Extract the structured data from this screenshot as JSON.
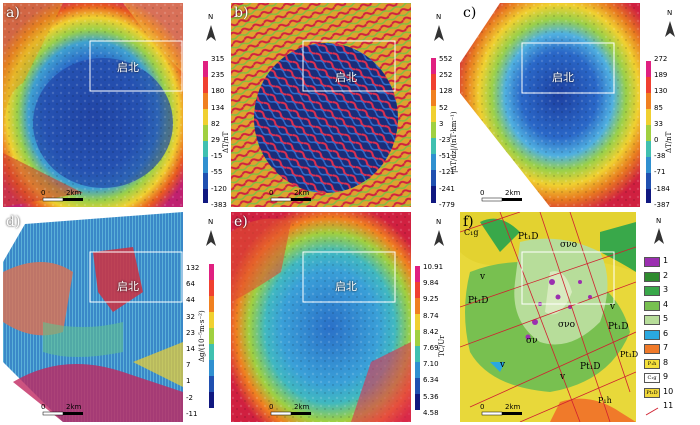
{
  "panels": [
    {
      "id": "a",
      "label": "a)",
      "place": "启北",
      "colorbar": [
        "315",
        "235",
        "180",
        "134",
        "82",
        "29",
        "-15",
        "-55",
        "-120",
        "-383"
      ],
      "unit": "ΔT/nT",
      "scale": {
        "zero": "0",
        "dist": "2km"
      },
      "north": "N"
    },
    {
      "id": "b",
      "label": "b)",
      "place": "启北",
      "colorbar": [
        "552",
        "252",
        "128",
        "52",
        "3",
        "-23",
        "-51",
        "-121",
        "-241",
        "-779"
      ],
      "unit": "|ΔT/dz|/(nT·km⁻¹)",
      "scale": {
        "zero": "0",
        "dist": "2km"
      },
      "north": "N"
    },
    {
      "id": "c",
      "label": "c)",
      "place": "启北",
      "colorbar": [
        "272",
        "189",
        "130",
        "85",
        "33",
        "0",
        "-38",
        "-71",
        "-184",
        "-387"
      ],
      "unit": "ΔT/nT",
      "scale": {
        "zero": "0",
        "dist": "2km"
      },
      "north": "N"
    },
    {
      "id": "d",
      "label": "d)",
      "place": "启北",
      "colorbar": [
        "132",
        "64",
        "44",
        "32",
        "23",
        "14",
        "7",
        "1",
        "-2",
        "-11"
      ],
      "unit": "Δg/(10⁻⁵m·s⁻²)",
      "scale": {
        "zero": "0",
        "dist": "2km"
      },
      "north": "N"
    },
    {
      "id": "e",
      "label": "e)",
      "place": "启北",
      "colorbar": [
        "10.91",
        "9.84",
        "9.25",
        "8.74",
        "8.42",
        "7.69",
        "7.10",
        "6.34",
        "5.36",
        "4.58"
      ],
      "unit": "TC/Ur",
      "scale": {
        "zero": "0",
        "dist": "2km"
      },
      "north": "N"
    },
    {
      "id": "f",
      "label": "f)",
      "scale": {
        "zero": "0",
        "dist": "2km"
      },
      "north": "N",
      "geo_labels": [
        "Pt₁D",
        "σνο",
        "Pt₁D",
        "σνο",
        "σν",
        "Pt₁D",
        "Pt₁D",
        "v",
        "v",
        "v",
        "v",
        "C₁g",
        "P₁h",
        "Pt₁D"
      ],
      "legend": [
        {
          "num": "1",
          "color": "#9b2fb0",
          "text": ""
        },
        {
          "num": "2",
          "color": "#2e8b2e",
          "text": ""
        },
        {
          "num": "3",
          "color": "#39a84a",
          "text": ""
        },
        {
          "num": "4",
          "color": "#78c050",
          "text": ""
        },
        {
          "num": "5",
          "color": "#b7dd9a",
          "text": ""
        },
        {
          "num": "6",
          "color": "#2aa8e0",
          "text": ""
        },
        {
          "num": "7",
          "color": "#f07a2a",
          "text": ""
        },
        {
          "num": "8",
          "color": "#f4e03a",
          "text": "P₁h"
        },
        {
          "num": "9",
          "color": "#ffffff",
          "text": "C₁g"
        },
        {
          "num": "10",
          "color": "#f2d83a",
          "text": "Pt₁D"
        },
        {
          "num": "11",
          "color": "#ffffff",
          "text": ""
        }
      ]
    }
  ]
}
